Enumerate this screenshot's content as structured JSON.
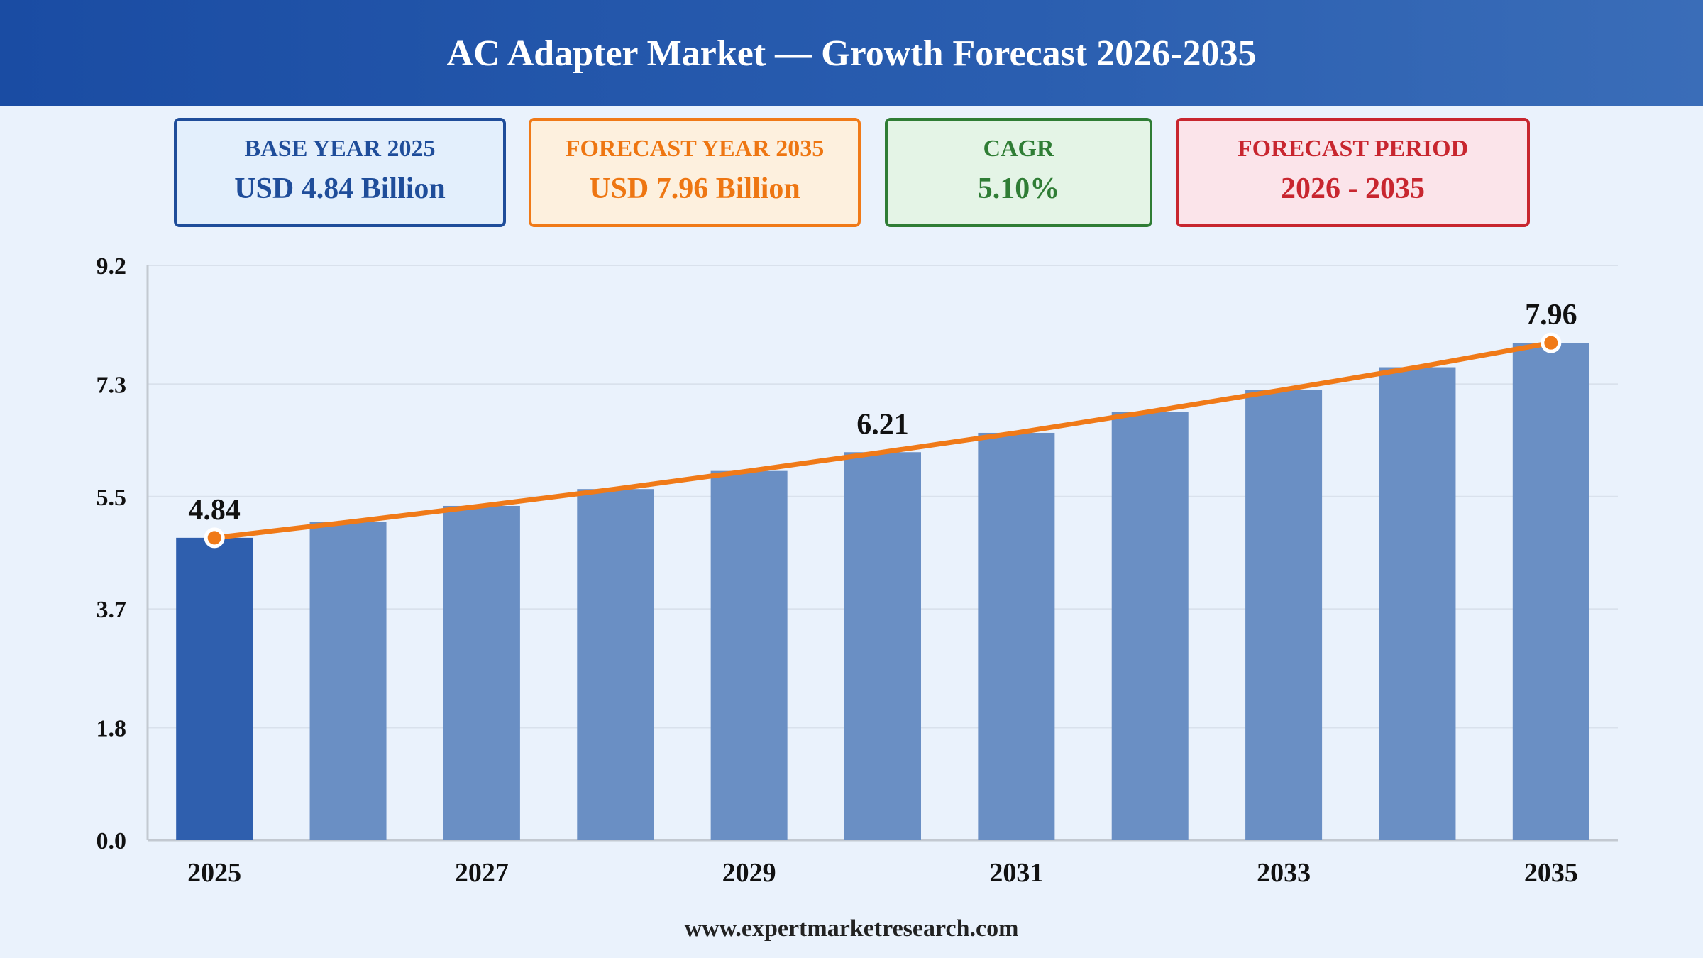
{
  "header": {
    "title": "AC Adapter Market — Growth Forecast 2026-2035"
  },
  "cards": {
    "base": {
      "label": "BASE YEAR 2025",
      "value": "USD 4.84 Billion"
    },
    "forecast": {
      "label": "FORECAST YEAR 2035",
      "value": "USD 7.96 Billion"
    },
    "cagr": {
      "label": "CAGR",
      "value": "5.10%"
    },
    "period": {
      "label": "FORECAST PERIOD",
      "value": "2026 - 2035"
    }
  },
  "footer": {
    "url": "www.expertmarketresearch.com"
  },
  "colors": {
    "bar_base": "#2f5fae",
    "bar": "#6a8fc4",
    "line": "#f07a18",
    "grid": "#d9e1ec",
    "axis": "#c3c9d1",
    "text": "#111111"
  },
  "chart_data": {
    "type": "bar",
    "categories": [
      "2025",
      "2026",
      "2027",
      "2028",
      "2029",
      "2030",
      "2031",
      "2032",
      "2033",
      "2034",
      "2035"
    ],
    "values": [
      4.84,
      5.09,
      5.35,
      5.62,
      5.91,
      6.21,
      6.52,
      6.86,
      7.21,
      7.57,
      7.96
    ],
    "x_tick_labels": [
      "2025",
      "",
      "2027",
      "",
      "2029",
      "",
      "2031",
      "",
      "2033",
      "",
      "2035"
    ],
    "y_ticks": [
      "0.0",
      "1.8",
      "3.7",
      "5.5",
      "7.3",
      "9.2"
    ],
    "ylim": [
      0,
      9.2
    ],
    "data_labels": [
      {
        "index": 0,
        "text": "4.84"
      },
      {
        "index": 5,
        "text": "6.21"
      },
      {
        "index": 10,
        "text": "7.96"
      }
    ],
    "line_overlay": {
      "values": [
        4.84,
        5.09,
        5.35,
        5.62,
        5.91,
        6.21,
        6.52,
        6.86,
        7.21,
        7.57,
        7.96
      ],
      "markers_at": [
        0,
        10
      ]
    },
    "grid": true,
    "title": "",
    "xlabel": "",
    "ylabel": ""
  }
}
